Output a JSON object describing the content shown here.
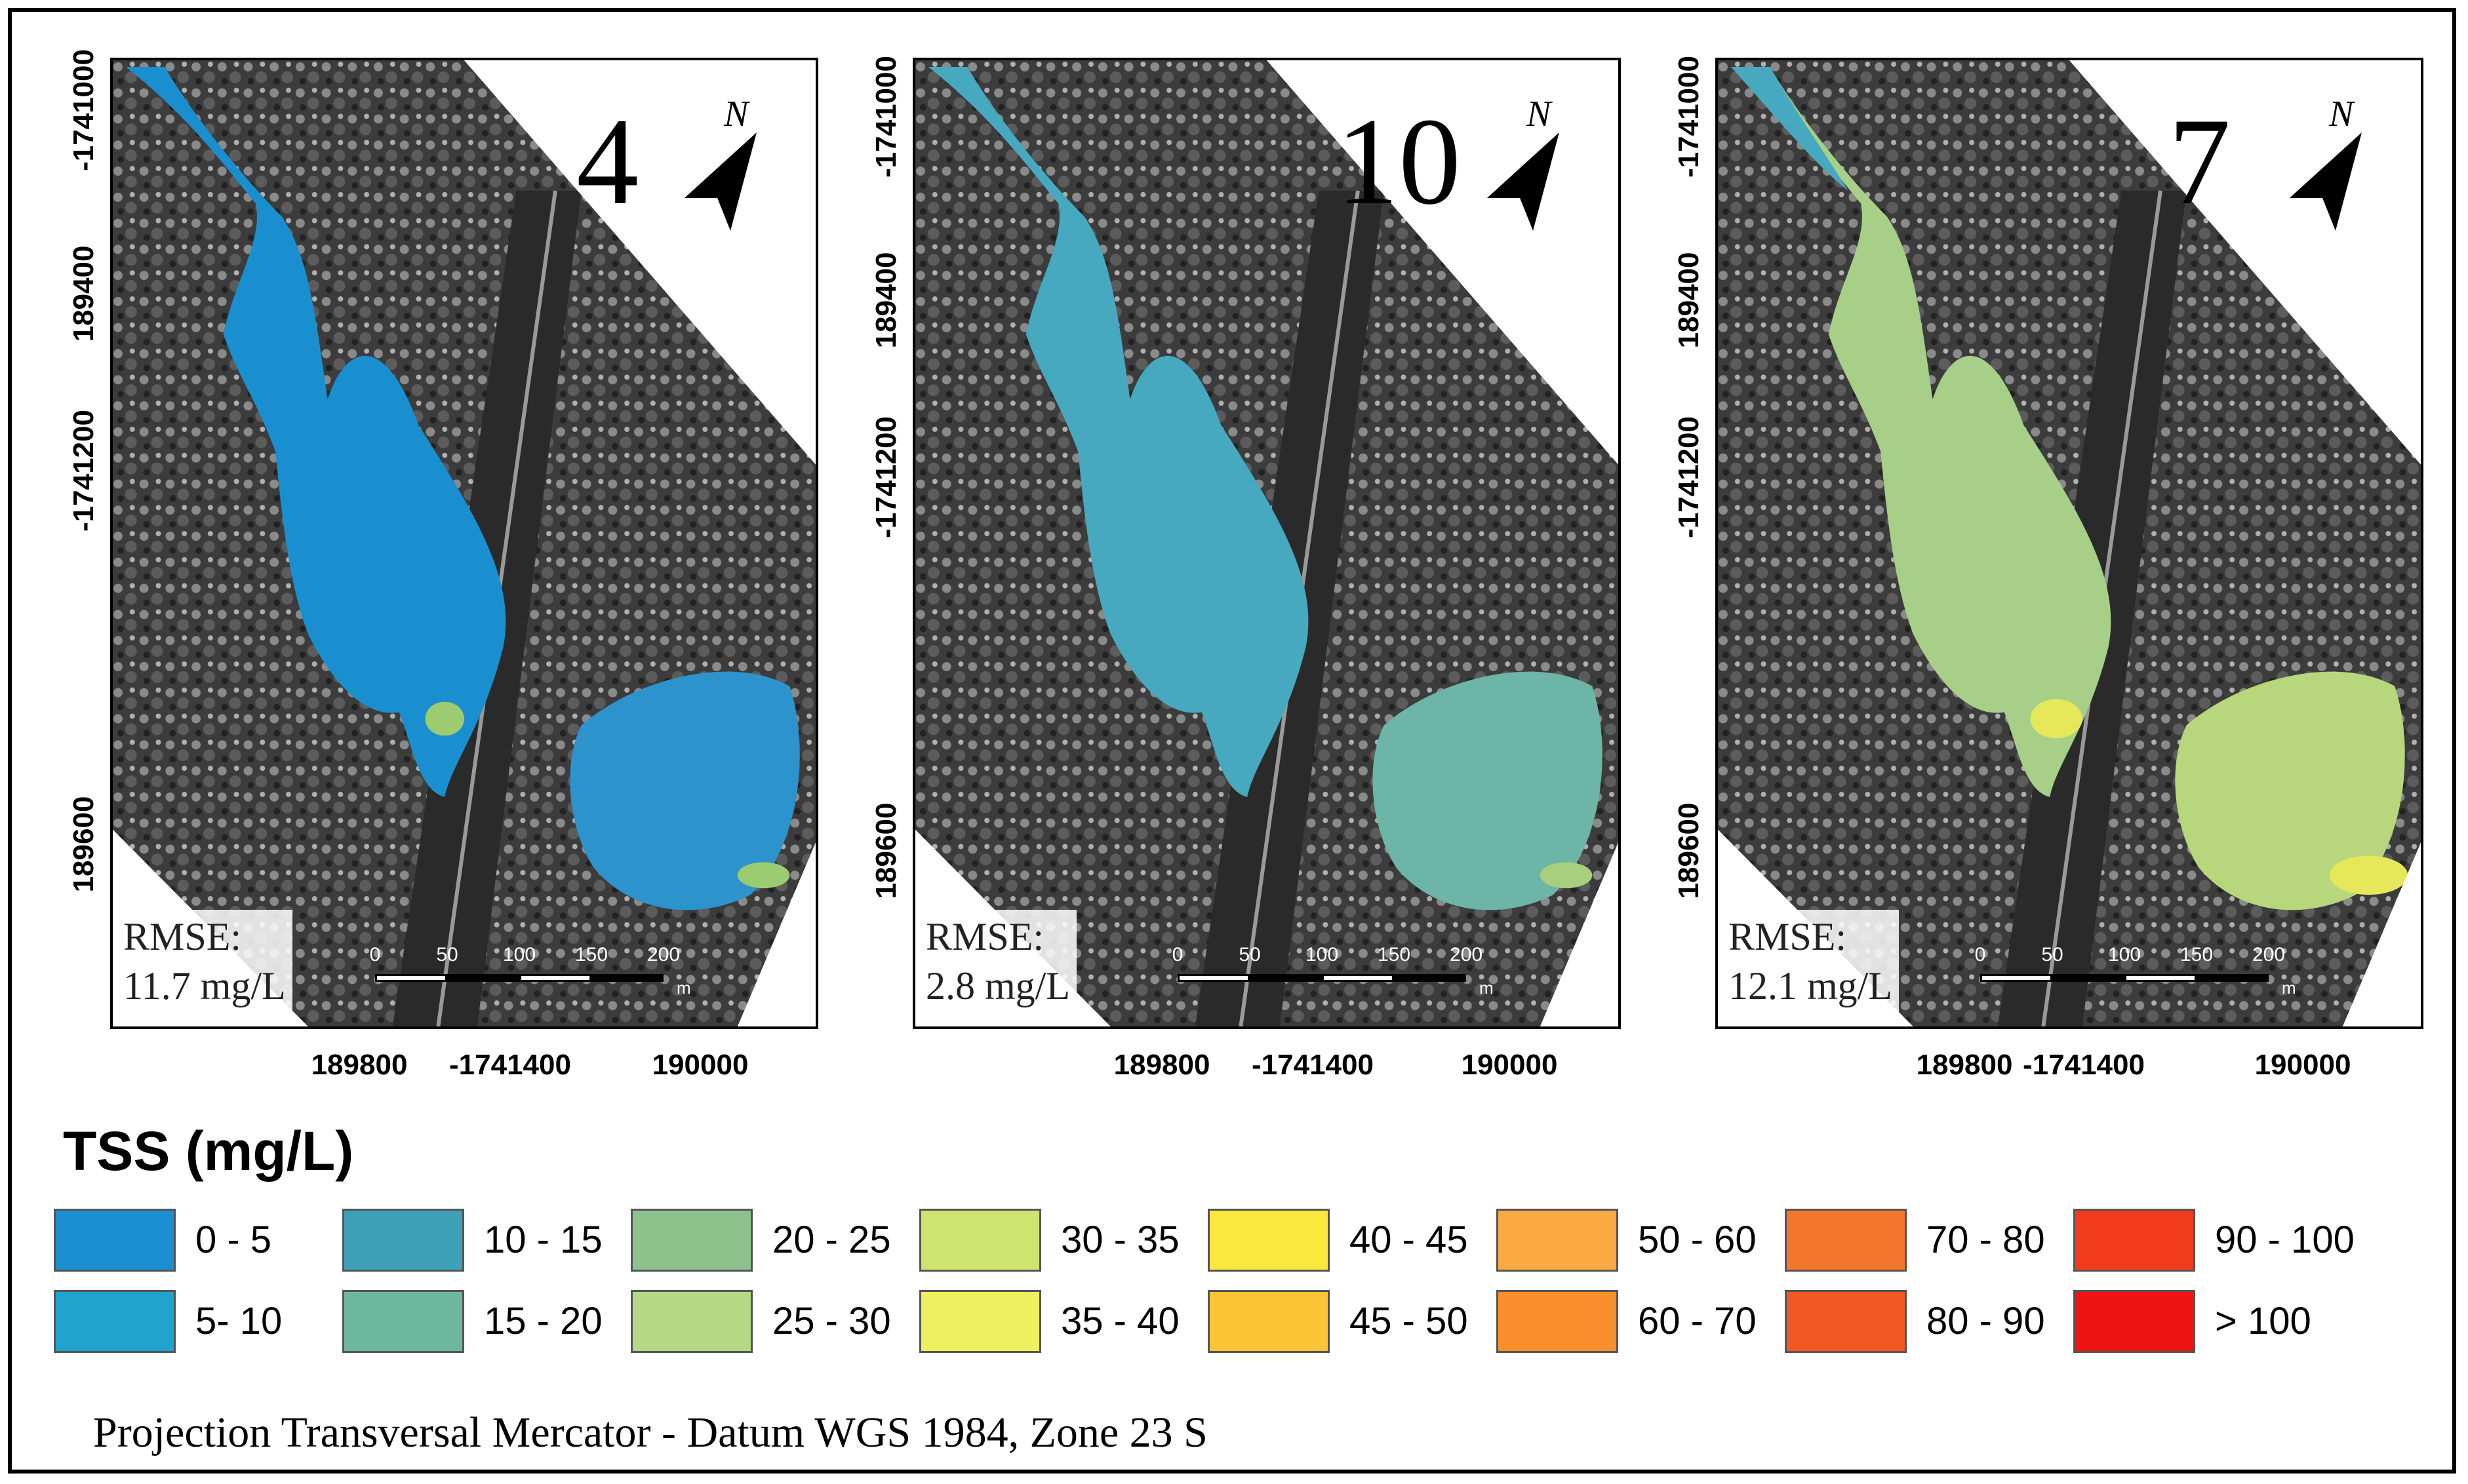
{
  "panels": [
    {
      "id": "panel-4",
      "number": "4",
      "rmse_label": "RMSE:",
      "rmse_value": "11.7 mg/L",
      "water_color": "#1a8fd0",
      "pond_color": "#2c93cc",
      "accent_color": "#9ccc70"
    },
    {
      "id": "panel-10",
      "number": "10",
      "rmse_label": "RMSE:",
      "rmse_value": "2.8 mg/L",
      "water_color": "#47a9c0",
      "pond_color": "#6db5a6",
      "accent_color": "#a8cf7d"
    },
    {
      "id": "panel-7",
      "number": "7",
      "rmse_label": "RMSE:",
      "rmse_value": "12.1 mg/L",
      "water_color": "#a8cf88",
      "pond_color": "#b8d67c",
      "accent_color": "#e6e85a"
    }
  ],
  "north_label": "N",
  "y_axis_labels": [
    "-1741000",
    "189400",
    "-1741200",
    "189600"
  ],
  "x_axis_labels": [
    "189800",
    "-1741400",
    "190000"
  ],
  "scalebar": {
    "ticks": [
      "0",
      "50",
      "100",
      "150",
      "200"
    ],
    "unit": "m"
  },
  "legend": {
    "title": "TSS (mg/L)",
    "items": [
      {
        "label": "0 - 5",
        "color": "#1b8fd2"
      },
      {
        "label": "5- 10",
        "color": "#1fa3cf"
      },
      {
        "label": "10 - 15",
        "color": "#3ea1b8"
      },
      {
        "label": "15 - 20",
        "color": "#6db79f"
      },
      {
        "label": "20 - 25",
        "color": "#8dc28d"
      },
      {
        "label": "25 - 30",
        "color": "#b4d884"
      },
      {
        "label": "30 - 35",
        "color": "#cde56e"
      },
      {
        "label": "35 - 40",
        "color": "#eef060"
      },
      {
        "label": "40 - 45",
        "color": "#fbe83d"
      },
      {
        "label": "45 - 50",
        "color": "#fcc337"
      },
      {
        "label": "50 - 60",
        "color": "#fba942"
      },
      {
        "label": "60 - 70",
        "color": "#f98f2c"
      },
      {
        "label": "70 - 80",
        "color": "#f5752c"
      },
      {
        "label": "80 - 90",
        "color": "#f25822"
      },
      {
        "label": "90 - 100",
        "color": "#f03c1c"
      },
      {
        "label": "> 100",
        "color": "#ee1414"
      }
    ]
  },
  "projection_text": "Projection Transversal  Mercator -  Datum WGS 1984, Zone 23 S"
}
